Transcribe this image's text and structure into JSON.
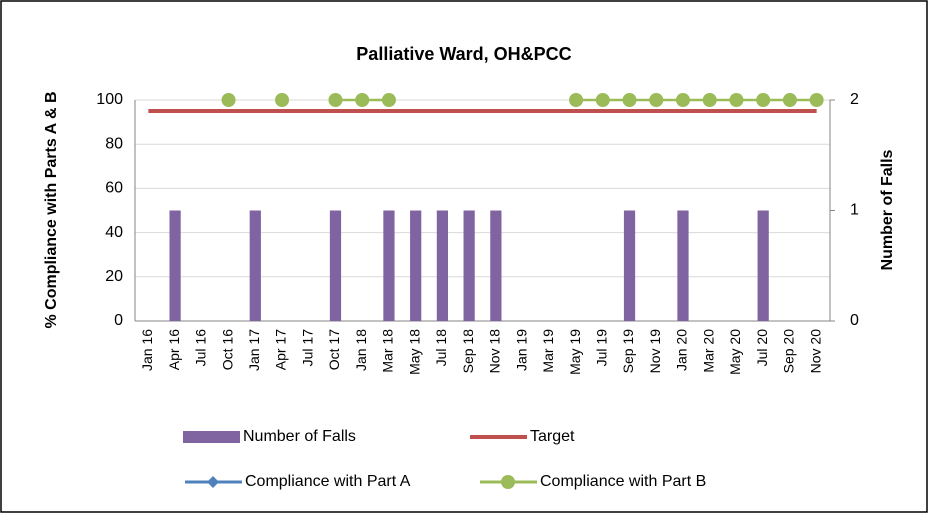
{
  "chart_data": {
    "type": "bar-line",
    "title": "Palliative Ward, OH&PCC",
    "y_label": "% Compliance with Parts A & B",
    "y2_label": "Number of Falls",
    "categories": [
      "Jan 16",
      "Apr 16",
      "Jul 16",
      "Oct 16",
      "Jan 17",
      "Apr 17",
      "Jul 17",
      "Oct 17",
      "Jan 18",
      "Mar 18",
      "May 18",
      "Jul 18",
      "Sep 18",
      "Nov 18",
      "Jan 19",
      "Mar 19",
      "May 19",
      "Jul 19",
      "Sep 19",
      "Nov 19",
      "Jan 20",
      "Mar 20",
      "May 20",
      "Jul 20",
      "Sep 20",
      "Nov 20"
    ],
    "series": [
      {
        "name": "Number of Falls",
        "type": "bar",
        "axis": "y2",
        "color": "#8064a2",
        "values": [
          null,
          1,
          null,
          null,
          1,
          null,
          null,
          1,
          null,
          1,
          1,
          1,
          1,
          1,
          null,
          null,
          null,
          null,
          1,
          null,
          1,
          null,
          null,
          1,
          null,
          null
        ]
      },
      {
        "name": "Target",
        "type": "line",
        "color": "#c0504d",
        "values": [
          95,
          95,
          95,
          95,
          95,
          95,
          95,
          95,
          95,
          95,
          95,
          95,
          95,
          95,
          95,
          95,
          95,
          95,
          95,
          95,
          95,
          95,
          95,
          95,
          95,
          95
        ]
      },
      {
        "name": "Compliance with Part A",
        "type": "line",
        "marker": "diamond",
        "color": "#4f81bd",
        "values": [
          null,
          null,
          null,
          null,
          null,
          null,
          null,
          null,
          null,
          null,
          null,
          null,
          null,
          null,
          null,
          null,
          null,
          null,
          null,
          null,
          null,
          null,
          null,
          null,
          null,
          null
        ]
      },
      {
        "name": "Compliance with Part B",
        "type": "line",
        "marker": "circle",
        "color": "#9bbb59",
        "values": [
          null,
          null,
          null,
          100,
          null,
          100,
          null,
          100,
          100,
          100,
          null,
          null,
          null,
          null,
          null,
          null,
          100,
          100,
          100,
          100,
          100,
          100,
          100,
          100,
          100,
          100
        ]
      }
    ],
    "ylim": [
      0,
      100
    ],
    "yticks": [
      0,
      20,
      40,
      60,
      80,
      100
    ],
    "y2lim": [
      0,
      2
    ],
    "y2ticks": [
      0,
      1,
      2
    ],
    "grid": true,
    "legend": "bottom"
  }
}
